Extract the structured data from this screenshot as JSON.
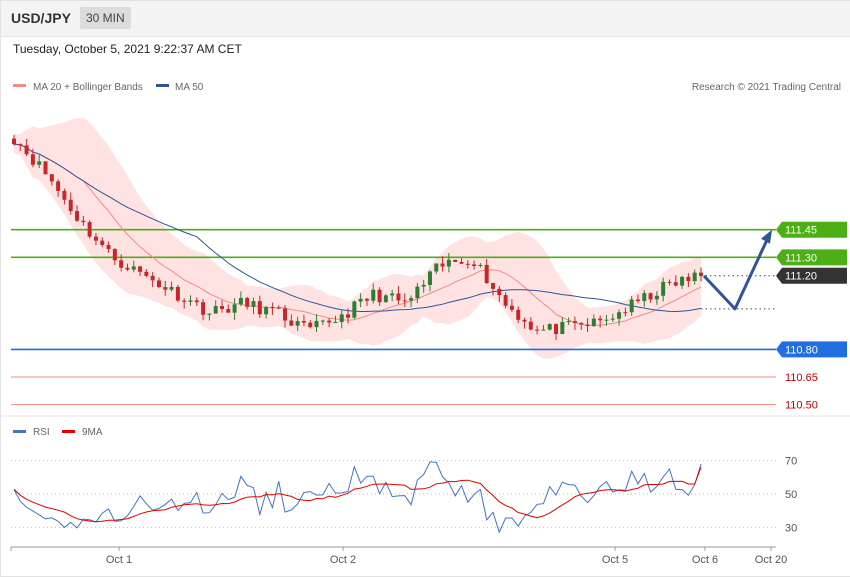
{
  "header": {
    "symbol": "USD/JPY",
    "timeframe": "30 MIN",
    "timestamp": "Tuesday, October 5, 2021 9:22:37 AM CET"
  },
  "legend": {
    "ma20": {
      "label": "MA 20 + Bollinger Bands",
      "color": "#f28b82"
    },
    "ma50": {
      "label": "MA 50",
      "color": "#2f5597"
    },
    "credit": "Research © 2021 Trading Central"
  },
  "rsi_legend": {
    "rsi": {
      "label": "RSI",
      "color": "#4472c4"
    },
    "ma9": {
      "label": "9MA",
      "color": "#e00000"
    }
  },
  "price_axis": {
    "min": 110.46,
    "max": 112.1
  },
  "levels": [
    {
      "value": "111.45",
      "style": "tag",
      "color": "#4caf16",
      "line": "#4caf16"
    },
    {
      "value": "111.30",
      "style": "tag",
      "color": "#4caf16",
      "line": "#4caf16"
    },
    {
      "value": "111.20",
      "style": "tag",
      "color": "#333333",
      "line": "dotted"
    },
    {
      "value": "110.80",
      "style": "tag",
      "color": "#1f6fe0",
      "line": "#1f6fe0"
    },
    {
      "value": "110.65",
      "style": "text",
      "color": "#c00000",
      "line": "#f28b82"
    },
    {
      "value": "110.50",
      "style": "text",
      "color": "#c00000",
      "line": "#f28b82"
    }
  ],
  "x_labels": [
    "Oct 1",
    "Oct 2",
    "Oct 5",
    "Oct 6",
    "Oct 20"
  ],
  "rsi_axis": {
    "ticks": [
      "70",
      "50",
      "30"
    ]
  },
  "colors": {
    "up": "#2e7d32",
    "down": "#c62828",
    "band_fill": "#ffd9d9",
    "forecast": "#2f5597"
  },
  "chart_data": {
    "type": "line",
    "title": "",
    "xlabel": "",
    "ylabel": "",
    "ylim": [
      110.46,
      112.1
    ],
    "x": [
      "Oct 1",
      "Oct 2",
      "Oct 5",
      "Oct 6"
    ],
    "series": [
      {
        "name": "MA 20",
        "values": [
          111.66,
          111.05,
          110.98,
          111.05
        ]
      },
      {
        "name": "MA 50",
        "values": [
          111.85,
          111.15,
          111.03,
          111.05
        ]
      }
    ],
    "close_path": [
      111.95,
      111.75,
      111.5,
      111.3,
      111.2,
      111.1,
      111.0,
      111.05,
      111.0,
      110.9,
      110.98,
      111.1,
      111.05,
      111.25,
      111.3,
      111.05,
      110.9,
      110.92,
      110.95,
      111.05,
      111.15,
      111.2
    ],
    "forecast": {
      "direction": "down then up",
      "pivot": 111.02,
      "target": 111.45
    },
    "rsi": {
      "ylim": [
        20,
        80
      ],
      "range_low": 30,
      "range_high": 70,
      "last_rsi": 68,
      "last_ma9": 66
    }
  }
}
